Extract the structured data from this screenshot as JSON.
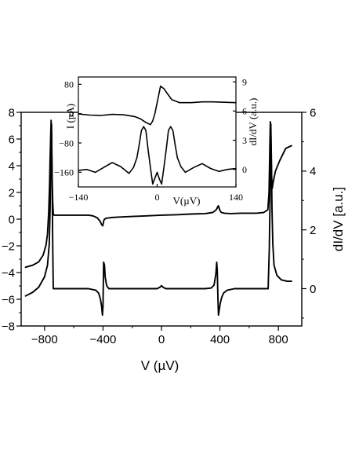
{
  "chart_data": [
    {
      "id": "main",
      "type": "line",
      "xlabel": "V (µV)",
      "ylabel_left": "",
      "ylabel_right": "dI/dV [a.u.]",
      "xlim": [
        -960,
        960
      ],
      "ylim_left": [
        -8,
        8
      ],
      "ylim_right": [
        -1.27,
        6.0
      ],
      "xticks": [
        -800,
        -400,
        0,
        400,
        800
      ],
      "yticks_left": [
        -8,
        -6,
        -4,
        -2,
        0,
        2,
        4,
        6,
        8
      ],
      "yticks_right": [
        0,
        2,
        4,
        6
      ],
      "grid": false,
      "legend": "none",
      "series": [
        {
          "key": "I",
          "axis": "left",
          "x": [
            -930,
            -880,
            -840,
            -810,
            -790,
            -780,
            -772,
            -766,
            -762,
            -758,
            -755,
            -752,
            -748,
            -744,
            -740,
            -736,
            -730,
            -700,
            -650,
            -600,
            -550,
            -500,
            -470,
            -440,
            -420,
            -410,
            -402,
            -398,
            -394,
            -390,
            -380,
            -370,
            -355,
            -345,
            -300,
            -200,
            -100,
            0,
            100,
            200,
            300,
            350,
            370,
            380,
            385,
            390,
            395,
            402,
            410,
            430,
            470,
            550,
            650,
            700,
            728,
            736,
            740,
            742,
            745,
            748,
            751,
            754,
            758,
            765,
            780,
            810,
            850,
            890
          ],
          "y": [
            -3.6,
            -3.45,
            -3.2,
            -2.7,
            -1.95,
            -1.1,
            0.5,
            2.5,
            4.5,
            6.3,
            7.4,
            6.2,
            3.2,
            1.2,
            0.4,
            0.3,
            0.3,
            0.3,
            0.3,
            0.3,
            0.3,
            0.3,
            0.25,
            0.1,
            -0.15,
            -0.4,
            -0.5,
            -0.3,
            -0.1,
            0.0,
            0.05,
            0.08,
            0.1,
            0.12,
            0.15,
            0.2,
            0.25,
            0.3,
            0.33,
            0.38,
            0.42,
            0.5,
            0.65,
            0.8,
            0.95,
            1.0,
            0.8,
            0.6,
            0.5,
            0.45,
            0.42,
            0.45,
            0.45,
            0.5,
            0.7,
            2.0,
            4.5,
            6.0,
            7.3,
            6.5,
            4.5,
            3.2,
            2.3,
            2.8,
            3.6,
            4.4,
            5.3,
            5.5
          ]
        },
        {
          "key": "dIdV",
          "axis": "right",
          "x": [
            -930,
            -880,
            -840,
            -800,
            -780,
            -768,
            -762,
            -756,
            -752,
            -748,
            -744,
            -740,
            -700,
            -600,
            -500,
            -450,
            -430,
            -418,
            -410,
            -404,
            -400,
            -396,
            -390,
            -385,
            -375,
            -360,
            -340,
            -300,
            -200,
            -100,
            -30,
            -10,
            0,
            10,
            30,
            100,
            200,
            300,
            340,
            360,
            372,
            378,
            382,
            386,
            390,
            396,
            402,
            412,
            425,
            450,
            500,
            600,
            700,
            730,
            738,
            744,
            748,
            752,
            756,
            762,
            770,
            790,
            820,
            860,
            890
          ],
          "y": [
            -0.25,
            -0.12,
            0.05,
            0.4,
            0.8,
            1.5,
            2.7,
            4.6,
            5.6,
            3.6,
            1.4,
            0.0,
            0.0,
            0.0,
            0.0,
            -0.05,
            -0.15,
            -0.35,
            -0.6,
            -0.9,
            -0.6,
            0.9,
            0.8,
            0.4,
            0.1,
            0.0,
            0.0,
            0.0,
            0.0,
            0.0,
            0.0,
            0.05,
            0.1,
            0.05,
            0.0,
            0.0,
            0.0,
            0.0,
            0.02,
            0.12,
            0.5,
            0.9,
            0.6,
            -0.3,
            -0.9,
            -0.7,
            -0.5,
            -0.3,
            -0.15,
            -0.05,
            0.0,
            0.0,
            0.0,
            0.0,
            1.4,
            3.4,
            5.6,
            4.5,
            2.7,
            1.5,
            0.8,
            0.45,
            0.3,
            0.25,
            0.25
          ]
        }
      ]
    },
    {
      "id": "inset",
      "type": "line",
      "xlabel": "V(µV)",
      "ylabel_left": "I (pA)",
      "ylabel_right": "dI/dV (a.u.)",
      "xlim": [
        -140,
        140
      ],
      "ylim_left": [
        -200,
        100
      ],
      "ylim_right": [
        -1.8,
        9.5
      ],
      "xticks": [
        -140,
        0,
        140
      ],
      "yticks_left": [
        80,
        0,
        -80,
        -160
      ],
      "yticks_right": [
        9,
        6,
        3,
        0
      ],
      "grid": false,
      "legend": "none",
      "series": [
        {
          "key": "I_inset",
          "axis": "left",
          "x": [
            -140,
            -120,
            -100,
            -80,
            -60,
            -40,
            -30,
            -20,
            -12,
            -8,
            -4,
            0,
            6,
            12,
            18,
            26,
            40,
            60,
            80,
            100,
            120,
            140
          ],
          "y": [
            -1,
            -4,
            -5,
            -2,
            -3,
            -8,
            -14,
            -24,
            -30,
            -20,
            0,
            30,
            75,
            68,
            55,
            38,
            30,
            30,
            32,
            32,
            31,
            30
          ]
        },
        {
          "key": "dIdV_inset",
          "axis": "right",
          "x": [
            -140,
            -125,
            -110,
            -95,
            -80,
            -65,
            -50,
            -42,
            -36,
            -32,
            -28,
            -24,
            -20,
            -16,
            -12,
            -8,
            -4,
            0,
            4,
            8,
            12,
            16,
            20,
            24,
            28,
            32,
            36,
            42,
            50,
            65,
            80,
            95,
            110,
            125,
            140
          ],
          "y": [
            -0.1,
            0.0,
            -0.3,
            0.2,
            0.7,
            0.3,
            -0.4,
            0.2,
            1.2,
            2.5,
            4.0,
            4.4,
            4.0,
            2.0,
            0.2,
            -1.5,
            -0.9,
            -0.3,
            -1.0,
            -1.5,
            0.2,
            2.0,
            4.0,
            4.4,
            4.0,
            2.5,
            1.2,
            0.3,
            -0.3,
            0.2,
            0.6,
            0.1,
            -0.2,
            0.0,
            0.1
          ]
        }
      ]
    }
  ]
}
